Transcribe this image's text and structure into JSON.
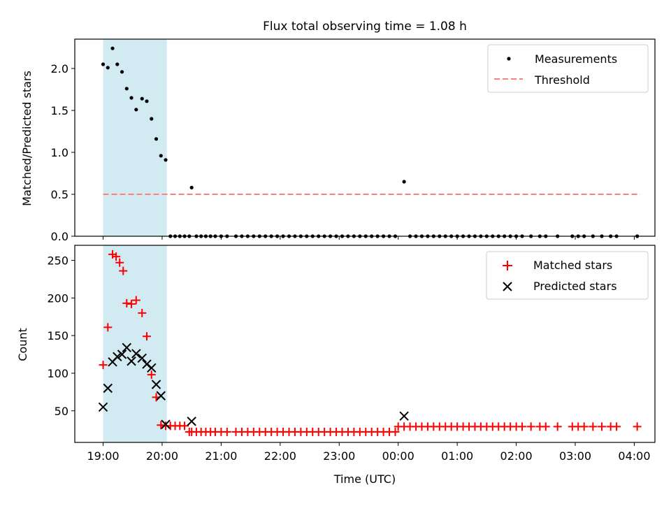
{
  "title": "Flux total observing time = 1.08 h",
  "x_axis": {
    "label": "Time (UTC)",
    "ticks": [
      "19:00",
      "20:00",
      "21:00",
      "22:00",
      "23:00",
      "00:00",
      "01:00",
      "02:00",
      "03:00",
      "04:00"
    ]
  },
  "top_panel": {
    "ylabel": "Matched/Predicted stars",
    "yticks": [
      "0.0",
      "0.5",
      "1.0",
      "1.5",
      "2.0"
    ],
    "legend": {
      "measurements": "Measurements",
      "threshold": "Threshold"
    }
  },
  "bottom_panel": {
    "ylabel": "Count",
    "yticks": [
      "50",
      "100",
      "150",
      "200",
      "250"
    ],
    "legend": {
      "matched": "Matched stars",
      "predicted": "Predicted stars"
    }
  },
  "colors": {
    "band": "#add8e6",
    "threshold": "#ff7f7f",
    "matched": "#ff0000",
    "predicted": "#000000",
    "measurements": "#000000"
  },
  "chart_data": [
    {
      "type": "scatter",
      "panel": "top",
      "title": "Flux total observing time = 1.08 h",
      "xlabel": "Time (UTC)",
      "ylabel": "Matched/Predicted stars",
      "xlim": [
        -0.48,
        9.35
      ],
      "ylim": [
        0,
        2.35
      ],
      "x_unit": "hours since 19:00 UTC",
      "highlight_band": [
        0.0,
        1.08
      ],
      "threshold": 0.5,
      "threshold_x": [
        0.0,
        9.1
      ],
      "legend_loc": "upper right",
      "series": [
        {
          "name": "Measurements",
          "x": [
            0.0,
            0.08,
            0.16,
            0.24,
            0.32,
            0.4,
            0.48,
            0.56,
            0.66,
            0.74,
            0.82,
            0.9,
            0.98,
            1.06,
            1.14,
            1.22,
            1.3,
            1.38,
            1.46,
            1.5,
            1.58,
            1.66,
            1.74,
            1.82,
            1.9,
            2.0,
            2.1,
            2.25,
            2.35,
            2.45,
            2.55,
            2.65,
            2.75,
            2.85,
            2.95,
            3.05,
            3.15,
            3.25,
            3.35,
            3.45,
            3.55,
            3.65,
            3.75,
            3.85,
            3.95,
            4.05,
            4.15,
            4.25,
            4.35,
            4.45,
            4.55,
            4.65,
            4.75,
            4.85,
            4.95,
            5.1,
            5.2,
            5.3,
            5.4,
            5.5,
            5.6,
            5.7,
            5.8,
            5.9,
            6.0,
            6.1,
            6.2,
            6.3,
            6.4,
            6.5,
            6.6,
            6.7,
            6.8,
            6.9,
            7.0,
            7.1,
            7.25,
            7.4,
            7.5,
            7.7,
            7.95,
            8.05,
            8.15,
            8.3,
            8.45,
            8.6,
            8.7,
            9.05
          ],
          "y": [
            2.05,
            2.01,
            2.24,
            2.05,
            1.96,
            1.76,
            1.65,
            1.51,
            1.64,
            1.61,
            1.4,
            1.16,
            0.96,
            0.91,
            0,
            0,
            0,
            0,
            0,
            0.58,
            0,
            0,
            0,
            0,
            0,
            0,
            0,
            0,
            0,
            0,
            0,
            0,
            0,
            0,
            0,
            0,
            0,
            0,
            0,
            0,
            0,
            0,
            0,
            0,
            0,
            0,
            0,
            0,
            0,
            0,
            0,
            0,
            0,
            0,
            0,
            0.65,
            0,
            0,
            0,
            0,
            0,
            0,
            0,
            0,
            0,
            0,
            0,
            0,
            0,
            0,
            0,
            0,
            0,
            0,
            0,
            0,
            0,
            0,
            0,
            0,
            0,
            0,
            0,
            0,
            0,
            0,
            0,
            0
          ]
        }
      ]
    },
    {
      "type": "scatter",
      "panel": "bottom",
      "xlabel": "Time (UTC)",
      "ylabel": "Count",
      "xlim": [
        -0.48,
        9.35
      ],
      "ylim": [
        8,
        270
      ],
      "x_unit": "hours since 19:00 UTC",
      "highlight_band": [
        0.0,
        1.08
      ],
      "legend_loc": "upper right",
      "series": [
        {
          "name": "Matched stars",
          "marker": "+",
          "x": [
            0.0,
            0.08,
            0.16,
            0.22,
            0.28,
            0.34,
            0.4,
            0.48,
            0.56,
            0.66,
            0.74,
            0.82,
            0.9,
            0.98,
            1.06,
            1.14,
            1.22,
            1.3,
            1.38,
            1.46,
            1.5,
            1.58,
            1.66,
            1.74,
            1.82,
            1.9,
            2.0,
            2.1,
            2.25,
            2.35,
            2.45,
            2.55,
            2.65,
            2.75,
            2.85,
            2.95,
            3.05,
            3.15,
            3.25,
            3.35,
            3.45,
            3.55,
            3.65,
            3.75,
            3.85,
            3.95,
            4.05,
            4.15,
            4.25,
            4.35,
            4.45,
            4.55,
            4.65,
            4.75,
            4.85,
            4.95,
            5.0,
            5.1,
            5.2,
            5.3,
            5.4,
            5.5,
            5.6,
            5.7,
            5.8,
            5.9,
            6.0,
            6.1,
            6.2,
            6.3,
            6.4,
            6.5,
            6.6,
            6.7,
            6.8,
            6.9,
            7.0,
            7.1,
            7.25,
            7.4,
            7.5,
            7.7,
            7.95,
            8.05,
            8.15,
            8.3,
            8.45,
            8.6,
            8.7,
            9.05
          ],
          "y": [
            111,
            161,
            258,
            255,
            247,
            236,
            193,
            192,
            197,
            180,
            149,
            98,
            68,
            31,
            30,
            30,
            30,
            30,
            30,
            22,
            22,
            22,
            22,
            22,
            22,
            22,
            22,
            22,
            22,
            22,
            22,
            22,
            22,
            22,
            22,
            22,
            22,
            22,
            22,
            22,
            22,
            22,
            22,
            22,
            22,
            22,
            22,
            22,
            22,
            22,
            22,
            22,
            22,
            22,
            22,
            22,
            29,
            29,
            29,
            29,
            29,
            29,
            29,
            29,
            29,
            29,
            29,
            29,
            29,
            29,
            29,
            29,
            29,
            29,
            29,
            29,
            29,
            29,
            29,
            29,
            29,
            29,
            29,
            29,
            29,
            29,
            29,
            29,
            29,
            29
          ]
        },
        {
          "name": "Predicted stars",
          "marker": "x",
          "x": [
            0.0,
            0.08,
            0.16,
            0.24,
            0.32,
            0.4,
            0.48,
            0.56,
            0.66,
            0.74,
            0.82,
            0.9,
            0.98,
            1.06,
            1.5,
            5.1
          ],
          "y": [
            55,
            80,
            115,
            122,
            125,
            134,
            116,
            126,
            120,
            112,
            107,
            85,
            70,
            32,
            36,
            43
          ]
        }
      ]
    }
  ]
}
